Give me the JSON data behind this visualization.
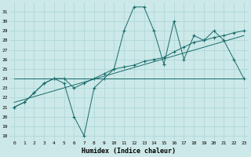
{
  "xlabel": "Humidex (Indice chaleur)",
  "x_ticks": [
    0,
    1,
    2,
    3,
    4,
    5,
    6,
    7,
    8,
    9,
    10,
    11,
    12,
    13,
    14,
    15,
    16,
    17,
    18,
    19,
    20,
    21,
    22,
    23
  ],
  "y_ticks": [
    18,
    19,
    20,
    21,
    22,
    23,
    24,
    25,
    26,
    27,
    28,
    29,
    30,
    31
  ],
  "ylim": [
    17.5,
    32.0
  ],
  "xlim": [
    -0.5,
    23.5
  ],
  "bg_color": "#cce8e8",
  "line_color": "#1a6b6b",
  "grid_color": "#aad4d4",
  "series1_x": [
    0,
    1,
    2,
    3,
    4,
    5,
    6,
    7,
    8,
    9,
    10,
    11,
    12,
    13,
    14,
    15,
    16,
    17,
    18,
    19,
    20,
    21,
    22,
    23
  ],
  "series1_y": [
    21,
    21.5,
    22.5,
    23.5,
    24,
    23.5,
    20,
    18,
    23,
    24,
    25,
    29,
    31.5,
    31.5,
    29,
    25.5,
    30,
    26,
    28.5,
    28,
    29,
    28,
    26,
    24
  ],
  "series2_x": [
    0,
    1,
    2,
    3,
    4,
    5,
    6,
    7,
    8,
    9,
    10,
    11,
    12,
    13,
    14,
    15,
    16,
    17,
    18,
    19,
    20,
    21,
    22,
    23
  ],
  "series2_y": [
    21,
    21.5,
    22.5,
    23.5,
    24,
    24,
    23,
    23.5,
    24,
    24.5,
    25,
    25.2,
    25.4,
    25.8,
    26,
    26.2,
    26.8,
    27.3,
    27.8,
    28,
    28.3,
    28.5,
    28.8,
    29
  ],
  "series3_x": [
    0,
    23
  ],
  "series3_y": [
    24.0,
    24.0
  ],
  "series4_x": [
    0,
    23
  ],
  "series4_y": [
    21.5,
    28.5
  ]
}
